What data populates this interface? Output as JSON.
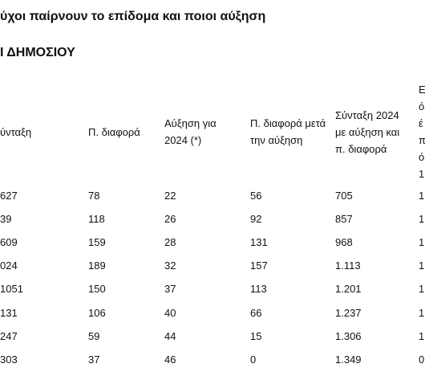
{
  "header": {
    "title": "ύχοι παίρνουν το επίδομα και ποιοι αύξηση",
    "subtitle": "Ι ΔΗΜΟΣΙΟΥ"
  },
  "table": {
    "headers": [
      "ύνταξη",
      "Π. διαφορά",
      "Αύξηση για 2024 (*)",
      "Π. διαφορά μετά την αύξηση",
      "Σύνταξη 2024 με αύξηση και π. διαφορά",
      "Ε ό έ π ό 1("
    ],
    "rows": [
      [
        "627",
        "78",
        "22",
        "56",
        "705",
        "1"
      ],
      [
        "39",
        "118",
        "26",
        "92",
        "857",
        "1"
      ],
      [
        "609",
        "159",
        "28",
        "131",
        "968",
        "1"
      ],
      [
        "024",
        "189",
        "32",
        "157",
        "1.113",
        "1"
      ],
      [
        "1051",
        "150",
        "37",
        "113",
        "1.201",
        "1"
      ],
      [
        "131",
        "106",
        "40",
        "66",
        "1.237",
        "1"
      ],
      [
        "247",
        "59",
        "44",
        "15",
        "1.306",
        "1"
      ],
      [
        "303",
        "37",
        "46",
        "0",
        "1.349",
        "0"
      ]
    ]
  }
}
